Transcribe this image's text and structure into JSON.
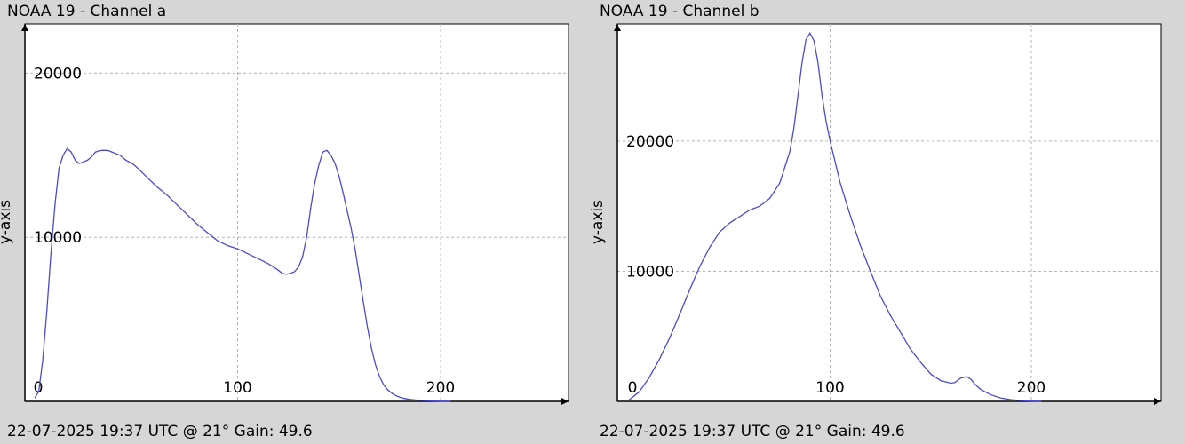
{
  "chart_data": [
    {
      "type": "line",
      "title": "NOAA 19 - Channel a",
      "ylabel": "y-axis",
      "xlabel": "",
      "footer": "22-07-2025 19:37 UTC @ 21° Gain: 49.6",
      "x_ticks": [
        0,
        100,
        200
      ],
      "y_ticks": [
        10000,
        20000
      ],
      "xlim": [
        0,
        255
      ],
      "ylim": [
        0,
        23000
      ],
      "grid": true,
      "line_color": "#4b4bcc",
      "series": [
        {
          "x": [
            0,
            2,
            4,
            6,
            8,
            10,
            12,
            14,
            16,
            18,
            20,
            22,
            24,
            26,
            28,
            30,
            33,
            36,
            38,
            40,
            42,
            45,
            48,
            50,
            55,
            60,
            65,
            70,
            75,
            80,
            85,
            90,
            95,
            100,
            105,
            110,
            115,
            120,
            122,
            124,
            126,
            128,
            130,
            132,
            134,
            136,
            138,
            140,
            142,
            144,
            146,
            148,
            150,
            152,
            154,
            156,
            158,
            160,
            162,
            164,
            166,
            168,
            170,
            172,
            174,
            176,
            178,
            180,
            182,
            185,
            188,
            190,
            195,
            200,
            205
          ],
          "y": [
            200,
            600,
            2500,
            5500,
            9000,
            12000,
            14200,
            15000,
            15400,
            15200,
            14700,
            14500,
            14600,
            14700,
            14900,
            15200,
            15300,
            15300,
            15200,
            15100,
            15000,
            14700,
            14500,
            14300,
            13700,
            13100,
            12600,
            12000,
            11400,
            10800,
            10300,
            9800,
            9500,
            9300,
            9000,
            8700,
            8400,
            8000,
            7800,
            7750,
            7800,
            7900,
            8200,
            8800,
            10000,
            11800,
            13300,
            14400,
            15200,
            15300,
            15000,
            14500,
            13700,
            12700,
            11600,
            10500,
            9200,
            7600,
            6000,
            4500,
            3200,
            2200,
            1500,
            1000,
            700,
            500,
            350,
            250,
            180,
            120,
            80,
            60,
            30,
            10,
            0
          ]
        }
      ]
    },
    {
      "type": "line",
      "title": "NOAA 19 - Channel b",
      "ylabel": "y-axis",
      "xlabel": "",
      "footer": "22-07-2025 19:37 UTC @ 21° Gain: 49.6",
      "x_ticks": [
        0,
        100,
        200
      ],
      "y_ticks": [
        10000,
        20000
      ],
      "xlim": [
        0,
        255
      ],
      "ylim": [
        0,
        29000
      ],
      "grid": true,
      "line_color": "#4b4bcc",
      "series": [
        {
          "x": [
            0,
            5,
            10,
            15,
            20,
            25,
            30,
            35,
            40,
            45,
            50,
            55,
            60,
            65,
            70,
            75,
            80,
            82,
            84,
            86,
            88,
            90,
            92,
            94,
            96,
            98,
            100,
            105,
            110,
            115,
            120,
            125,
            130,
            135,
            140,
            145,
            150,
            155,
            160,
            162,
            165,
            168,
            170,
            172,
            175,
            180,
            185,
            190,
            195,
            200,
            205
          ],
          "y": [
            100,
            700,
            1800,
            3200,
            4800,
            6600,
            8500,
            10300,
            11800,
            13000,
            13700,
            14200,
            14700,
            15000,
            15600,
            16800,
            19200,
            21000,
            23500,
            26000,
            27800,
            28300,
            27700,
            26000,
            23500,
            21500,
            20000,
            16800,
            14300,
            12000,
            10000,
            8100,
            6600,
            5300,
            4000,
            3000,
            2100,
            1600,
            1400,
            1450,
            1800,
            1900,
            1700,
            1300,
            900,
            500,
            250,
            120,
            60,
            20,
            0
          ]
        }
      ]
    }
  ]
}
